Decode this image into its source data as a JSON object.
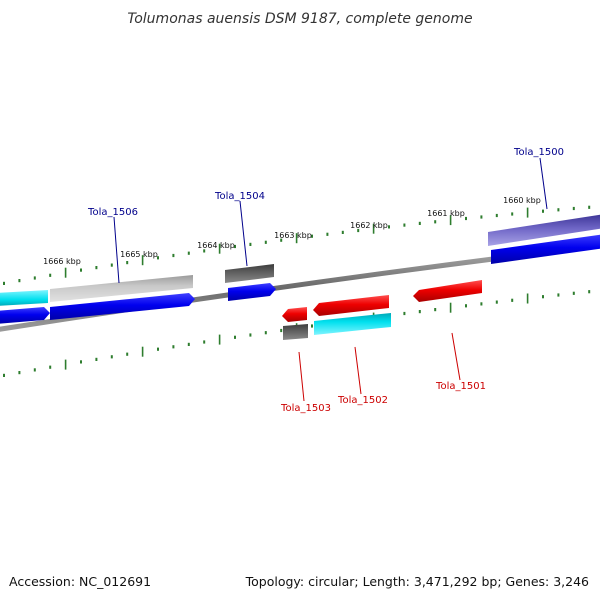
{
  "title": "Tolumonas auensis DSM 9187, complete genome",
  "scale_labels": [
    "1666 kbp",
    "1665 kbp",
    "1664 kbp",
    "1663 kbp",
    "1662 kbp",
    "1661 kbp",
    "1660 kbp"
  ],
  "genes": [
    {
      "name": "Tola_1506",
      "strand": "forward",
      "colors": [
        "#c8c8c8",
        "#0000ee"
      ]
    },
    {
      "name": "Tola_1504",
      "strand": "forward",
      "colors": [
        "#606060",
        "#0000ee"
      ]
    },
    {
      "name": "Tola_1500",
      "strand": "forward",
      "colors": [
        "#6f66c6",
        "#0000ee"
      ]
    },
    {
      "name": "Tola_1503",
      "strand": "reverse",
      "colors": [
        "#ee0000",
        "#606060"
      ]
    },
    {
      "name": "Tola_1502",
      "strand": "reverse",
      "colors": [
        "#ee0000",
        "#00e0ee"
      ]
    },
    {
      "name": "Tola_1501",
      "strand": "reverse",
      "colors": [
        "#ee0000"
      ]
    }
  ],
  "footer": {
    "accession": "Accession: NC_012691",
    "topology": "Topology: circular; Length: 3,471,292 bp; Genes: 3,246"
  },
  "colors": {
    "forward_label": "#00008b",
    "reverse_label": "#cc0000",
    "tick": "#2e7d2e",
    "backbone": "#777777"
  }
}
